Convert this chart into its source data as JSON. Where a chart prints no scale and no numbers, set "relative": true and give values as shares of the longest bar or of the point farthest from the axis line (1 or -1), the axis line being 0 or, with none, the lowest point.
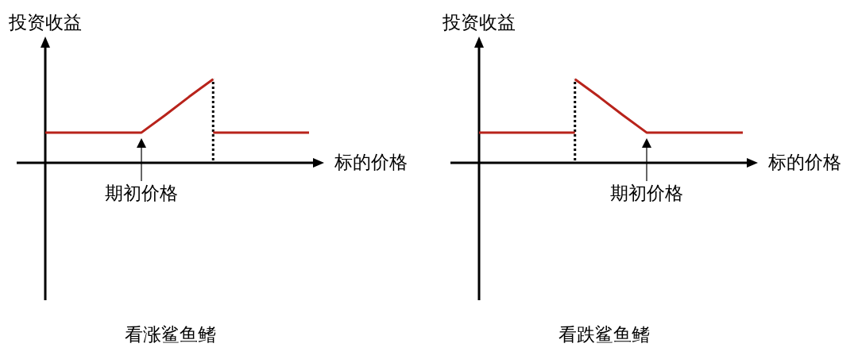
{
  "chart_data": [
    {
      "type": "line",
      "title": "看涨鲨鱼鳍",
      "xlabel": "标的价格",
      "ylabel": "投资收益",
      "relative": true,
      "marker": "none",
      "legend": false,
      "grid": false,
      "categories": [
        null,
        null,
        null,
        null,
        null,
        null,
        null,
        null,
        null,
        null,
        null,
        null
      ],
      "series": [
        {
          "color": "#b8231b",
          "values": [
            0.36,
            0.36,
            0.36,
            0.36,
            0.36,
            0.57,
            0.79,
            1,
            null,
            null,
            null,
            null
          ]
        },
        {
          "color": "#b8231b",
          "values": [
            null,
            null,
            null,
            null,
            null,
            null,
            null,
            0.36,
            0.36,
            0.36,
            0.36,
            0.36
          ]
        }
      ],
      "annotations": [
        {
          "text": "期初价格",
          "y": 0.36
        }
      ]
    },
    {
      "type": "line",
      "title": "看跌鲨鱼鳍",
      "xlabel": "标的价格",
      "ylabel": "投资收益",
      "relative": true,
      "marker": "none",
      "legend": false,
      "grid": false,
      "categories": [
        null,
        null,
        null,
        null,
        null,
        null,
        null,
        null,
        null,
        null,
        null,
        null
      ],
      "series": [
        {
          "color": "#b8231b",
          "values": [
            0.36,
            0.36,
            0.36,
            0.36,
            0.36,
            null,
            null,
            null,
            null,
            null,
            null,
            null
          ]
        },
        {
          "color": "#b8231b",
          "values": [
            null,
            null,
            null,
            null,
            1,
            0.79,
            0.57,
            0.36,
            0.36,
            0.36,
            0.36,
            0.36
          ]
        }
      ],
      "annotations": [
        {
          "text": "期初价格",
          "y": 0.36
        }
      ]
    }
  ]
}
